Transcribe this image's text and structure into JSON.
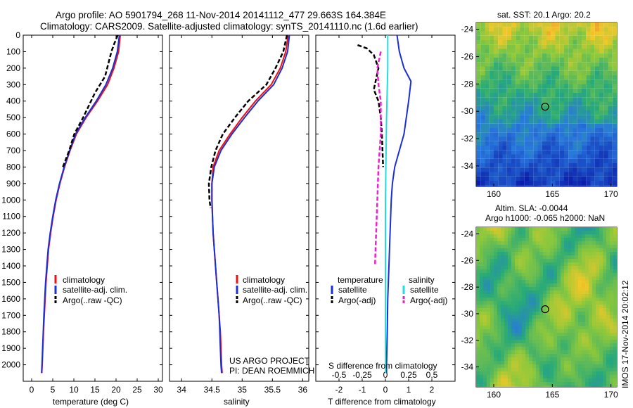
{
  "header": {
    "line1": "Argo profile: AO 5901794_268 11-Nov-2014 20141112_477 29.663S 164.384E",
    "line2": "Climatology: CARS2009. Satellite-adjusted climatology: synTS_20141110.nc (1.6d earlier)"
  },
  "project": {
    "line1": "US ARGO PROJECT",
    "line2": "PI: DEAN ROEMMICH"
  },
  "watermark": "IMOS 17-Nov-2014 20:02:12",
  "colors": {
    "climatology": "#ee1111",
    "satellite": "#1a2fd6",
    "argo": "#000000",
    "sat_salinity": "#22dddd",
    "argo_salinity": "#ee22cc"
  },
  "chart_data": [
    {
      "type": "line",
      "id": "temperature",
      "xlabel": "temperature (deg C)",
      "ylabel": "",
      "xlim": [
        -2,
        31
      ],
      "ylim": [
        2100,
        0
      ],
      "xticks": [
        0,
        5,
        10,
        15,
        20,
        25,
        30
      ],
      "yticks": [
        0,
        100,
        200,
        300,
        400,
        500,
        600,
        700,
        800,
        900,
        1000,
        1100,
        1200,
        1300,
        1400,
        1500,
        1600,
        1700,
        1800,
        1900,
        2000
      ],
      "legend": [
        "climatology",
        "satellite-adj. clim.",
        "Argo(..raw -QC)"
      ],
      "series": [
        {
          "name": "climatology",
          "style": "solid",
          "color": "#ee1111",
          "points": [
            [
              21.0,
              0
            ],
            [
              20.6,
              100
            ],
            [
              19.5,
              200
            ],
            [
              18.0,
              300
            ],
            [
              15.6,
              400
            ],
            [
              12.9,
              500
            ],
            [
              10.6,
              600
            ],
            [
              9.1,
              700
            ],
            [
              7.8,
              800
            ],
            [
              6.7,
              900
            ],
            [
              5.8,
              1000
            ],
            [
              5.1,
              1100
            ],
            [
              4.5,
              1200
            ],
            [
              4.0,
              1300
            ],
            [
              3.7,
              1400
            ],
            [
              3.4,
              1500
            ],
            [
              3.2,
              1600
            ],
            [
              3.0,
              1700
            ],
            [
              2.8,
              1800
            ],
            [
              2.65,
              1900
            ],
            [
              2.5,
              2000
            ],
            [
              2.4,
              2050
            ]
          ]
        },
        {
          "name": "satellite-adj. clim.",
          "style": "solid",
          "color": "#1a2fd6",
          "points": [
            [
              20.8,
              0
            ],
            [
              20.3,
              100
            ],
            [
              19.2,
              200
            ],
            [
              17.6,
              300
            ],
            [
              15.3,
              400
            ],
            [
              12.7,
              500
            ],
            [
              10.4,
              600
            ],
            [
              9.0,
              700
            ],
            [
              7.7,
              800
            ],
            [
              6.6,
              900
            ],
            [
              5.7,
              1000
            ],
            [
              5.0,
              1100
            ],
            [
              4.4,
              1200
            ],
            [
              3.9,
              1300
            ],
            [
              3.6,
              1400
            ],
            [
              3.3,
              1500
            ],
            [
              3.1,
              1600
            ],
            [
              2.9,
              1700
            ],
            [
              2.75,
              1800
            ],
            [
              2.6,
              1900
            ],
            [
              2.45,
              2000
            ],
            [
              2.35,
              2050
            ]
          ]
        },
        {
          "name": "Argo(..raw -QC)",
          "style": "dashed",
          "color": "#000000",
          "points": [
            [
              20.4,
              0
            ],
            [
              19.6,
              50
            ],
            [
              18.9,
              100
            ],
            [
              17.4,
              250
            ],
            [
              15.0,
              350
            ],
            [
              12.2,
              500
            ],
            [
              10.1,
              600
            ],
            [
              8.9,
              700
            ],
            [
              7.4,
              800
            ]
          ]
        }
      ]
    },
    {
      "type": "line",
      "id": "salinity",
      "xlabel": "salinity",
      "ylabel": "",
      "xlim": [
        33.8,
        36.1
      ],
      "ylim": [
        2100,
        0
      ],
      "xticks": [
        34,
        34.5,
        35,
        35.5,
        36
      ],
      "legend": [
        "climatology",
        "satellite-adj. clim.",
        "Argo(..raw -QC)"
      ],
      "series": [
        {
          "name": "climatology",
          "style": "solid",
          "color": "#ee1111",
          "points": [
            [
              35.76,
              0
            ],
            [
              35.72,
              100
            ],
            [
              35.63,
              200
            ],
            [
              35.48,
              300
            ],
            [
              35.22,
              400
            ],
            [
              35.0,
              500
            ],
            [
              34.8,
              600
            ],
            [
              34.62,
              700
            ],
            [
              34.52,
              800
            ],
            [
              34.5,
              900
            ],
            [
              34.5,
              1000
            ],
            [
              34.51,
              1100
            ],
            [
              34.52,
              1200
            ],
            [
              34.54,
              1300
            ],
            [
              34.56,
              1400
            ],
            [
              34.58,
              1500
            ],
            [
              34.6,
              1600
            ],
            [
              34.62,
              1700
            ],
            [
              34.64,
              1800
            ],
            [
              34.65,
              1900
            ],
            [
              34.66,
              2000
            ],
            [
              34.67,
              2050
            ]
          ]
        },
        {
          "name": "satellite-adj. clim.",
          "style": "solid",
          "color": "#1a2fd6",
          "points": [
            [
              35.78,
              0
            ],
            [
              35.75,
              100
            ],
            [
              35.66,
              200
            ],
            [
              35.52,
              300
            ],
            [
              35.26,
              400
            ],
            [
              35.04,
              500
            ],
            [
              34.83,
              600
            ],
            [
              34.65,
              700
            ],
            [
              34.54,
              800
            ],
            [
              34.5,
              900
            ],
            [
              34.5,
              1000
            ],
            [
              34.51,
              1100
            ],
            [
              34.52,
              1200
            ],
            [
              34.54,
              1300
            ],
            [
              34.56,
              1400
            ],
            [
              34.58,
              1500
            ],
            [
              34.6,
              1600
            ],
            [
              34.62,
              1700
            ],
            [
              34.63,
              1800
            ],
            [
              34.64,
              1900
            ],
            [
              34.65,
              2000
            ],
            [
              34.66,
              2050
            ]
          ]
        },
        {
          "name": "Argo(..raw -QC)",
          "style": "dashed",
          "color": "#000000",
          "points": [
            [
              35.74,
              0
            ],
            [
              35.68,
              100
            ],
            [
              35.55,
              200
            ],
            [
              35.4,
              300
            ],
            [
              35.1,
              400
            ],
            [
              34.88,
              500
            ],
            [
              34.68,
              600
            ],
            [
              34.56,
              700
            ],
            [
              34.49,
              800
            ],
            [
              34.45,
              900
            ],
            [
              34.46,
              1000
            ],
            [
              34.48,
              1050
            ]
          ]
        }
      ]
    },
    {
      "type": "line",
      "id": "difference",
      "xlabel": "T difference from climatology",
      "xlabel_top": "S difference from climatology",
      "ylabel": "",
      "xlim": [
        -3,
        3
      ],
      "ylim": [
        2100,
        0
      ],
      "xticks": [
        -2,
        -1,
        0,
        1,
        2
      ],
      "xticklabels_top": [
        "-0.5",
        "-0.25",
        "0",
        "0.25",
        "0.5"
      ],
      "legend_groups": [
        {
          "title": "temperature",
          "items": [
            "satellite",
            "Argo(-adj)"
          ]
        },
        {
          "title": "salinity",
          "items": [
            "satellite",
            "Argo(-adj)"
          ]
        }
      ],
      "series": [
        {
          "name": "satellite",
          "group": "temperature",
          "style": "solid",
          "color": "#1a2fd6",
          "points": [
            [
              0.5,
              0
            ],
            [
              0.6,
              100
            ],
            [
              0.8,
              200
            ],
            [
              1.1,
              280
            ],
            [
              1.0,
              400
            ],
            [
              0.9,
              500
            ],
            [
              0.8,
              600
            ],
            [
              0.6,
              700
            ],
            [
              0.4,
              800
            ],
            [
              0.3,
              900
            ],
            [
              0.25,
              1000
            ],
            [
              0.2,
              1200
            ],
            [
              0.15,
              1400
            ],
            [
              0.1,
              1600
            ],
            [
              0.08,
              1800
            ],
            [
              0.05,
              2000
            ],
            [
              0.05,
              2050
            ]
          ]
        },
        {
          "name": "Argo(-adj)",
          "group": "temperature",
          "style": "dashed",
          "color": "#000000",
          "points": [
            [
              -1.2,
              60
            ],
            [
              -0.8,
              80
            ],
            [
              -0.5,
              120
            ],
            [
              -0.3,
              200
            ],
            [
              -0.5,
              330
            ],
            [
              -0.3,
              400
            ],
            [
              -0.2,
              500
            ],
            [
              -0.15,
              600
            ],
            [
              -0.1,
              800
            ]
          ]
        },
        {
          "name": "satellite",
          "group": "salinity",
          "style": "solid",
          "color": "#22dddd",
          "points": [
            [
              0.1,
              0
            ],
            [
              0.1,
              200
            ],
            [
              0.05,
              500
            ],
            [
              0.0,
              1000
            ],
            [
              0.0,
              1500
            ],
            [
              0.0,
              2050
            ]
          ]
        },
        {
          "name": "Argo(-adj)",
          "group": "salinity",
          "style": "dashed",
          "color": "#ee22cc",
          "points": [
            [
              -0.2,
              100
            ],
            [
              -0.35,
              200
            ],
            [
              -0.3,
              300
            ],
            [
              -0.2,
              400
            ],
            [
              -0.2,
              600
            ],
            [
              -0.3,
              800
            ],
            [
              -0.35,
              1000
            ],
            [
              -0.4,
              1200
            ],
            [
              -0.45,
              1400
            ]
          ]
        }
      ]
    }
  ],
  "maps": {
    "sst": {
      "title": "sat. SST: 20.1  Argo: 20.2",
      "xticks": [
        160,
        165,
        170
      ],
      "yticks": [
        -24,
        -26,
        -28,
        -30,
        -32,
        -34
      ]
    },
    "sla": {
      "title1": "Altim. SLA: -0.0044",
      "title2": "Argo h1000: -0.065 h2000: NaN",
      "xticks": [
        160,
        165,
        170
      ],
      "yticks": [
        -24,
        -26,
        -28,
        -30,
        -32,
        -34
      ]
    }
  }
}
